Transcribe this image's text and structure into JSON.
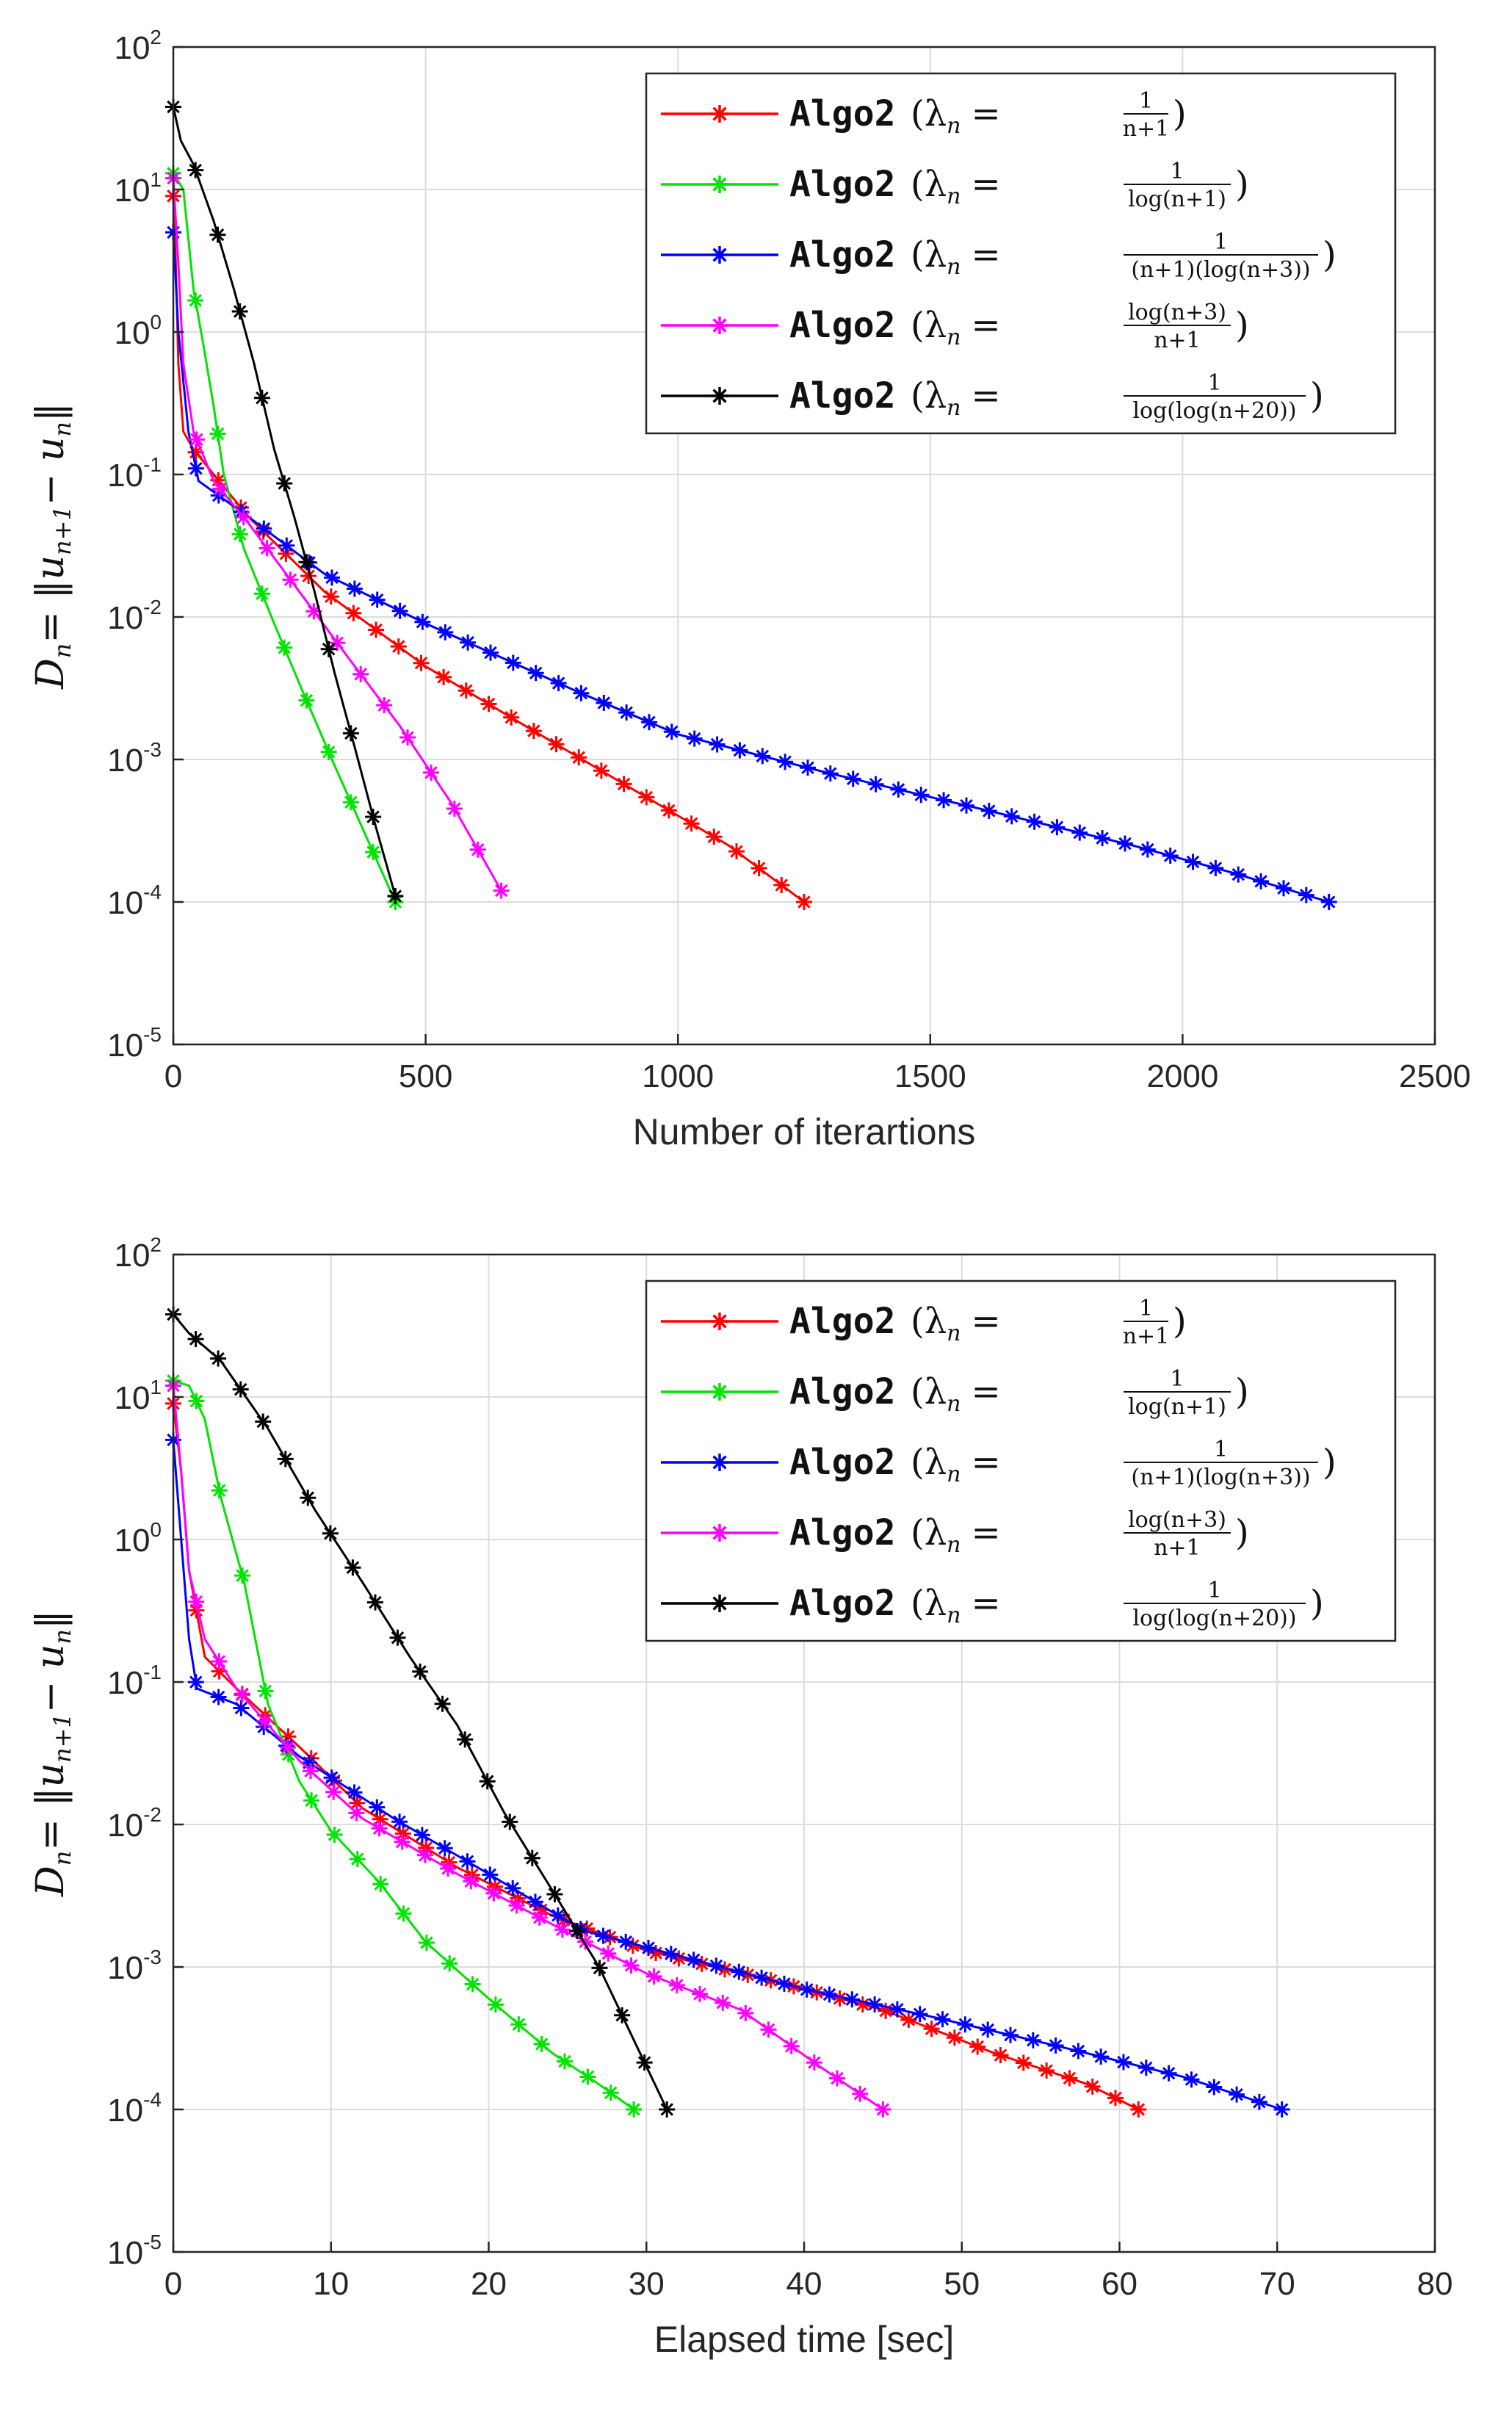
{
  "colors": {
    "axis": "#262626",
    "grid": "#dcdcdc",
    "series": [
      "#ff0000",
      "#00e400",
      "#0000ff",
      "#ff00ff",
      "#000000"
    ]
  },
  "legend": {
    "prefix": "Algo2",
    "lambda": "(λ",
    "subscript": "n",
    "equals": "=",
    "close": ")",
    "entries": [
      {
        "num": "1",
        "den": "n+1"
      },
      {
        "num": "1",
        "den": "log(n+1)"
      },
      {
        "num": "1",
        "den": "(n+1)(log(n+3))"
      },
      {
        "num": "log(n+3)",
        "den": "n+1"
      },
      {
        "num": "1",
        "den": "log(log(n+20))"
      }
    ]
  },
  "y_axis_label": {
    "lhs": "D",
    "lhs_sub": "n",
    "rhs": "= ‖u",
    "rhs_sub": "n+1",
    "tail": "− u",
    "tail_sub": "n",
    "end": "‖"
  },
  "y_ticks": [
    {
      "base": "10",
      "exp": "2",
      "value": 2
    },
    {
      "base": "10",
      "exp": "1",
      "value": 1
    },
    {
      "base": "10",
      "exp": "0",
      "value": 0
    },
    {
      "base": "10",
      "exp": "-1",
      "value": -1
    },
    {
      "base": "10",
      "exp": "-2",
      "value": -2
    },
    {
      "base": "10",
      "exp": "-3",
      "value": -3
    },
    {
      "base": "10",
      "exp": "-4",
      "value": -4
    },
    {
      "base": "10",
      "exp": "-5",
      "value": -5
    }
  ],
  "chart_data": [
    {
      "type": "line",
      "xlabel": "Number of iterartions",
      "xlim": [
        0,
        2500
      ],
      "ylim": [
        1e-05,
        100
      ],
      "yscale": "log",
      "xticks": [
        "0",
        "500",
        "1000",
        "1500",
        "2000",
        "2500"
      ],
      "xtick_values": [
        0,
        500,
        1000,
        1500,
        2000,
        2500
      ],
      "grid": true,
      "legend_position": "top-right",
      "series": [
        {
          "end_x": 1250,
          "points": [
            [
              0,
              9
            ],
            [
              5,
              3
            ],
            [
              10,
              0.6
            ],
            [
              20,
              0.2
            ],
            [
              40,
              0.15
            ],
            [
              80,
              0.1
            ],
            [
              150,
              0.05
            ],
            [
              300,
              0.015
            ],
            [
              500,
              0.0045
            ],
            [
              700,
              0.0017
            ],
            [
              900,
              0.00065
            ],
            [
              1100,
              0.00025
            ],
            [
              1250,
              0.0001
            ]
          ]
        },
        {
          "end_x": 440,
          "points": [
            [
              0,
              13
            ],
            [
              20,
              10
            ],
            [
              40,
              2
            ],
            [
              60,
              0.8
            ],
            [
              80,
              0.3
            ],
            [
              100,
              0.1
            ],
            [
              140,
              0.03
            ],
            [
              200,
              0.009
            ],
            [
              260,
              0.0028
            ],
            [
              320,
              0.0009
            ],
            [
              380,
              0.0003
            ],
            [
              440,
              0.0001
            ]
          ]
        },
        {
          "end_x": 2290,
          "points": [
            [
              0,
              5
            ],
            [
              10,
              1
            ],
            [
              30,
              0.2
            ],
            [
              50,
              0.09
            ],
            [
              150,
              0.05
            ],
            [
              300,
              0.02
            ],
            [
              500,
              0.009
            ],
            [
              800,
              0.003
            ],
            [
              1000,
              0.0015
            ],
            [
              1300,
              0.0008
            ],
            [
              1600,
              0.00045
            ],
            [
              1900,
              0.00025
            ],
            [
              2100,
              0.00016
            ],
            [
              2290,
              0.0001
            ]
          ]
        },
        {
          "end_x": 650,
          "points": [
            [
              0,
              12
            ],
            [
              10,
              3
            ],
            [
              20,
              0.6
            ],
            [
              40,
              0.2
            ],
            [
              80,
              0.09
            ],
            [
              150,
              0.045
            ],
            [
              250,
              0.015
            ],
            [
              350,
              0.005
            ],
            [
              450,
              0.0017
            ],
            [
              550,
              0.0005
            ],
            [
              650,
              0.00012
            ]
          ]
        },
        {
          "end_x": 440,
          "points": [
            [
              0,
              38
            ],
            [
              15,
              22
            ],
            [
              40,
              15
            ],
            [
              80,
              6
            ],
            [
              120,
              2
            ],
            [
              160,
              0.6
            ],
            [
              200,
              0.15
            ],
            [
              240,
              0.05
            ],
            [
              280,
              0.015
            ],
            [
              320,
              0.004
            ],
            [
              360,
              0.0012
            ],
            [
              400,
              0.00035
            ],
            [
              440,
              0.00011
            ]
          ]
        }
      ]
    },
    {
      "type": "line",
      "xlabel": "Elapsed time [sec]",
      "xlim": [
        0,
        80
      ],
      "ylim": [
        1e-05,
        100
      ],
      "yscale": "log",
      "xticks": [
        "0",
        "10",
        "20",
        "30",
        "40",
        "50",
        "60",
        "70",
        "80"
      ],
      "xtick_values": [
        0,
        10,
        20,
        30,
        40,
        50,
        60,
        70,
        80
      ],
      "grid": true,
      "legend_position": "top-right",
      "series": [
        {
          "end_x": 61.2,
          "points": [
            [
              0,
              9
            ],
            [
              0.5,
              3
            ],
            [
              1,
              0.6
            ],
            [
              2,
              0.15
            ],
            [
              4,
              0.09
            ],
            [
              8,
              0.035
            ],
            [
              12,
              0.013
            ],
            [
              18,
              0.005
            ],
            [
              24,
              0.0023
            ],
            [
              30,
              0.0013
            ],
            [
              38,
              0.0008
            ],
            [
              45,
              0.0005
            ],
            [
              52,
              0.00025
            ],
            [
              58,
              0.00015
            ],
            [
              61.2,
              0.0001
            ]
          ]
        },
        {
          "end_x": 29.2,
          "points": [
            [
              0,
              13
            ],
            [
              1,
              12
            ],
            [
              2,
              7
            ],
            [
              3,
              2
            ],
            [
              4.5,
              0.5
            ],
            [
              6,
              0.07
            ],
            [
              8,
              0.02
            ],
            [
              10,
              0.009
            ],
            [
              13,
              0.004
            ],
            [
              16,
              0.0015
            ],
            [
              20,
              0.0006
            ],
            [
              24,
              0.00025
            ],
            [
              27,
              0.00015
            ],
            [
              29.2,
              0.0001
            ]
          ]
        },
        {
          "end_x": 70.3,
          "points": [
            [
              0,
              5
            ],
            [
              0.5,
              1
            ],
            [
              1,
              0.2
            ],
            [
              1.5,
              0.09
            ],
            [
              4,
              0.07
            ],
            [
              8,
              0.03
            ],
            [
              14,
              0.011
            ],
            [
              20,
              0.0045
            ],
            [
              26,
              0.0018
            ],
            [
              32,
              0.0012
            ],
            [
              40,
              0.0007
            ],
            [
              48,
              0.00045
            ],
            [
              56,
              0.00028
            ],
            [
              64,
              0.00017
            ],
            [
              70.3,
              0.0001
            ]
          ]
        },
        {
          "end_x": 45.0,
          "points": [
            [
              0,
              12
            ],
            [
              0.5,
              3
            ],
            [
              1,
              0.6
            ],
            [
              2,
              0.2
            ],
            [
              4,
              0.09
            ],
            [
              8,
              0.028
            ],
            [
              12,
              0.011
            ],
            [
              18,
              0.0045
            ],
            [
              24,
              0.002
            ],
            [
              30,
              0.0009
            ],
            [
              36,
              0.0005
            ],
            [
              41,
              0.0002
            ],
            [
              45,
              0.0001
            ]
          ]
        },
        {
          "end_x": 31.3,
          "points": [
            [
              0,
              38
            ],
            [
              1,
              28
            ],
            [
              3,
              18
            ],
            [
              6,
              6
            ],
            [
              9,
              1.6
            ],
            [
              12,
              0.5
            ],
            [
              15,
              0.15
            ],
            [
              18,
              0.05
            ],
            [
              21,
              0.012
            ],
            [
              24,
              0.0035
            ],
            [
              27,
              0.001
            ],
            [
              30,
              0.0002
            ],
            [
              31.3,
              0.0001
            ]
          ]
        }
      ]
    }
  ]
}
